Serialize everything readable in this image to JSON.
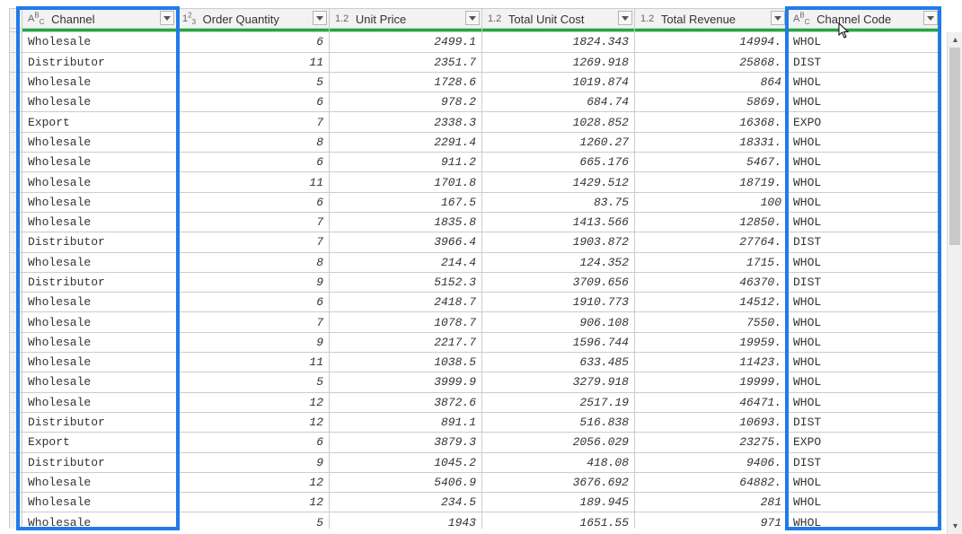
{
  "colors": {
    "highlight_border": "#1f7bea",
    "selected_header_bg": "#ffe178",
    "header_bg": "#f2f2f2",
    "quality_bar": "#1aab40",
    "cell_border": "#cccccc"
  },
  "columns": [
    {
      "key": "channel",
      "label": "Channel",
      "type_icon": "ABC",
      "selected": true,
      "align": "left"
    },
    {
      "key": "qty",
      "label": "Order Quantity",
      "type_icon": "123",
      "selected": false,
      "align": "right"
    },
    {
      "key": "price",
      "label": "Unit Price",
      "type_icon": "1.2",
      "selected": false,
      "align": "right"
    },
    {
      "key": "cost",
      "label": "Total Unit Cost",
      "type_icon": "1.2",
      "selected": false,
      "align": "right"
    },
    {
      "key": "rev",
      "label": "Total Revenue",
      "type_icon": "1.2",
      "selected": false,
      "align": "right"
    },
    {
      "key": "code",
      "label": "Channel Code",
      "type_icon": "ABC",
      "selected": true,
      "align": "left"
    }
  ],
  "rows": [
    {
      "channel": "Wholesale",
      "qty": "6",
      "price": "2499.1",
      "cost": "1824.343",
      "rev": "14994.",
      "code": "WHOL"
    },
    {
      "channel": "Distributor",
      "qty": "11",
      "price": "2351.7",
      "cost": "1269.918",
      "rev": "25868.",
      "code": "DIST"
    },
    {
      "channel": "Wholesale",
      "qty": "5",
      "price": "1728.6",
      "cost": "1019.874",
      "rev": "864",
      "code": "WHOL"
    },
    {
      "channel": "Wholesale",
      "qty": "6",
      "price": "978.2",
      "cost": "684.74",
      "rev": "5869.",
      "code": "WHOL"
    },
    {
      "channel": "Export",
      "qty": "7",
      "price": "2338.3",
      "cost": "1028.852",
      "rev": "16368.",
      "code": "EXPO"
    },
    {
      "channel": "Wholesale",
      "qty": "8",
      "price": "2291.4",
      "cost": "1260.27",
      "rev": "18331.",
      "code": "WHOL"
    },
    {
      "channel": "Wholesale",
      "qty": "6",
      "price": "911.2",
      "cost": "665.176",
      "rev": "5467.",
      "code": "WHOL"
    },
    {
      "channel": "Wholesale",
      "qty": "11",
      "price": "1701.8",
      "cost": "1429.512",
      "rev": "18719.",
      "code": "WHOL"
    },
    {
      "channel": "Wholesale",
      "qty": "6",
      "price": "167.5",
      "cost": "83.75",
      "rev": "100",
      "code": "WHOL"
    },
    {
      "channel": "Wholesale",
      "qty": "7",
      "price": "1835.8",
      "cost": "1413.566",
      "rev": "12850.",
      "code": "WHOL"
    },
    {
      "channel": "Distributor",
      "qty": "7",
      "price": "3966.4",
      "cost": "1903.872",
      "rev": "27764.",
      "code": "DIST"
    },
    {
      "channel": "Wholesale",
      "qty": "8",
      "price": "214.4",
      "cost": "124.352",
      "rev": "1715.",
      "code": "WHOL"
    },
    {
      "channel": "Distributor",
      "qty": "9",
      "price": "5152.3",
      "cost": "3709.656",
      "rev": "46370.",
      "code": "DIST"
    },
    {
      "channel": "Wholesale",
      "qty": "6",
      "price": "2418.7",
      "cost": "1910.773",
      "rev": "14512.",
      "code": "WHOL"
    },
    {
      "channel": "Wholesale",
      "qty": "7",
      "price": "1078.7",
      "cost": "906.108",
      "rev": "7550.",
      "code": "WHOL"
    },
    {
      "channel": "Wholesale",
      "qty": "9",
      "price": "2217.7",
      "cost": "1596.744",
      "rev": "19959.",
      "code": "WHOL"
    },
    {
      "channel": "Wholesale",
      "qty": "11",
      "price": "1038.5",
      "cost": "633.485",
      "rev": "11423.",
      "code": "WHOL"
    },
    {
      "channel": "Wholesale",
      "qty": "5",
      "price": "3999.9",
      "cost": "3279.918",
      "rev": "19999.",
      "code": "WHOL"
    },
    {
      "channel": "Wholesale",
      "qty": "12",
      "price": "3872.6",
      "cost": "2517.19",
      "rev": "46471.",
      "code": "WHOL"
    },
    {
      "channel": "Distributor",
      "qty": "12",
      "price": "891.1",
      "cost": "516.838",
      "rev": "10693.",
      "code": "DIST"
    },
    {
      "channel": "Export",
      "qty": "6",
      "price": "3879.3",
      "cost": "2056.029",
      "rev": "23275.",
      "code": "EXPO"
    },
    {
      "channel": "Distributor",
      "qty": "9",
      "price": "1045.2",
      "cost": "418.08",
      "rev": "9406.",
      "code": "DIST"
    },
    {
      "channel": "Wholesale",
      "qty": "12",
      "price": "5406.9",
      "cost": "3676.692",
      "rev": "64882.",
      "code": "WHOL"
    },
    {
      "channel": "Wholesale",
      "qty": "12",
      "price": "234.5",
      "cost": "189.945",
      "rev": "281",
      "code": "WHOL"
    },
    {
      "channel": "Wholesale",
      "qty": "5",
      "price": "1943",
      "cost": "1651.55",
      "rev": "971",
      "code": "WHOL"
    }
  ]
}
